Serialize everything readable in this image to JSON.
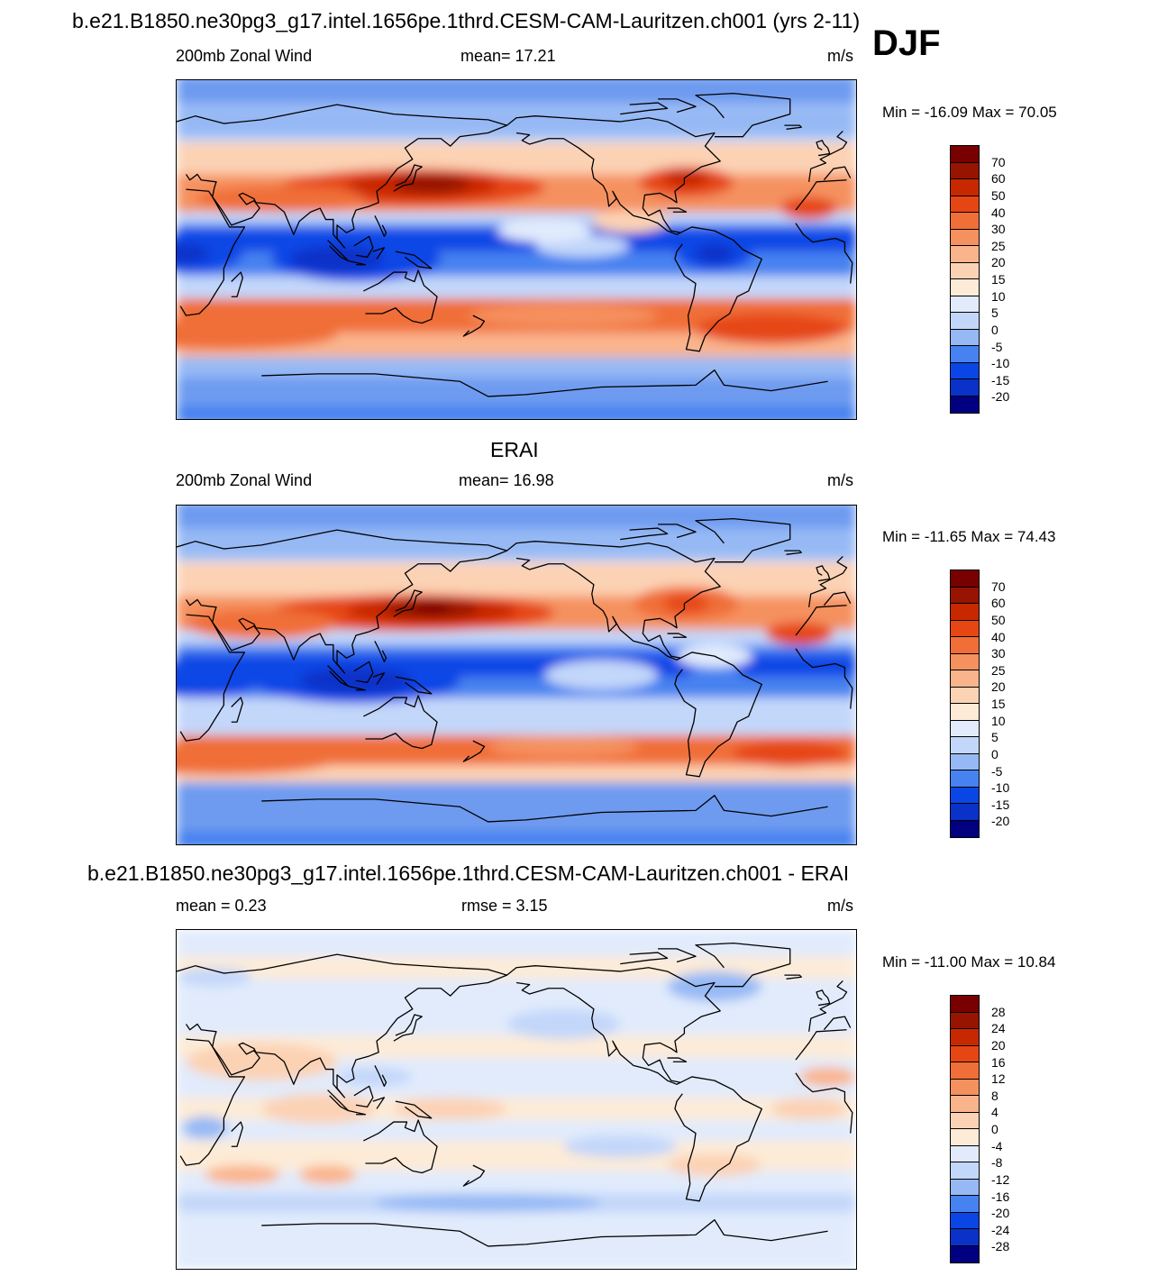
{
  "title": "b.e21.B1850.ne30pg3_g17.intel.1656pe.1thrd.CESM-CAM-Lauritzen.ch001 (yrs 2-11)",
  "season": "DJF",
  "colors": {
    "wind_scale": [
      "#000080",
      "#0a1fa0",
      "#0a32c8",
      "#0a46e6",
      "#2864f0",
      "#4682f0",
      "#6e9bf0",
      "#96b9f5",
      "#c3d7fa",
      "#e1ebfc",
      "#fdebd7",
      "#fcd2b4",
      "#fab48c",
      "#f5915f",
      "#f06e37",
      "#e64614",
      "#c82800",
      "#961400",
      "#780000"
    ],
    "diff_scale": [
      "#000080",
      "#0a1fa0",
      "#0a32c8",
      "#0a46e6",
      "#2864f0",
      "#4682f0",
      "#6e9bf0",
      "#96b9f5",
      "#c3d7fa",
      "#e1ebfc",
      "#fdebd7",
      "#fcd2b4",
      "#fab48c",
      "#f5915f",
      "#f06e37",
      "#e64614",
      "#c82800",
      "#961400",
      "#780000"
    ]
  },
  "panels": [
    {
      "heading": "",
      "left_label": "200mb Zonal Wind",
      "center_label": "mean=  17.21",
      "units": "m/s",
      "minmax": "Min = -16.09 Max =  70.05",
      "colorbar_labels": [
        "70",
        "60",
        "50",
        "40",
        "30",
        "25",
        "20",
        "15",
        "10",
        "5",
        "0",
        "-5",
        "-10",
        "-15",
        "-20"
      ],
      "scale": "wind"
    },
    {
      "heading": "ERAI",
      "left_label": "200mb Zonal Wind",
      "center_label": "mean=  16.98",
      "units": "m/s",
      "minmax": "Min = -11.65 Max =  74.43",
      "colorbar_labels": [
        "70",
        "60",
        "50",
        "40",
        "30",
        "25",
        "20",
        "15",
        "10",
        "5",
        "0",
        "-5",
        "-10",
        "-15",
        "-20"
      ],
      "scale": "wind"
    },
    {
      "heading": "b.e21.B1850.ne30pg3_g17.intel.1656pe.1thrd.CESM-CAM-Lauritzen.ch001 - ERAI",
      "left_label": "mean =   0.23",
      "center_label": "rmse =   3.15",
      "units": "m/s",
      "minmax": "Min = -11.00 Max =  10.84",
      "colorbar_labels": [
        "28",
        "24",
        "20",
        "16",
        "12",
        "8",
        "4",
        "0",
        "-4",
        "-8",
        "-12",
        "-16",
        "-20",
        "-24",
        "-28"
      ],
      "scale": "diff"
    }
  ]
}
